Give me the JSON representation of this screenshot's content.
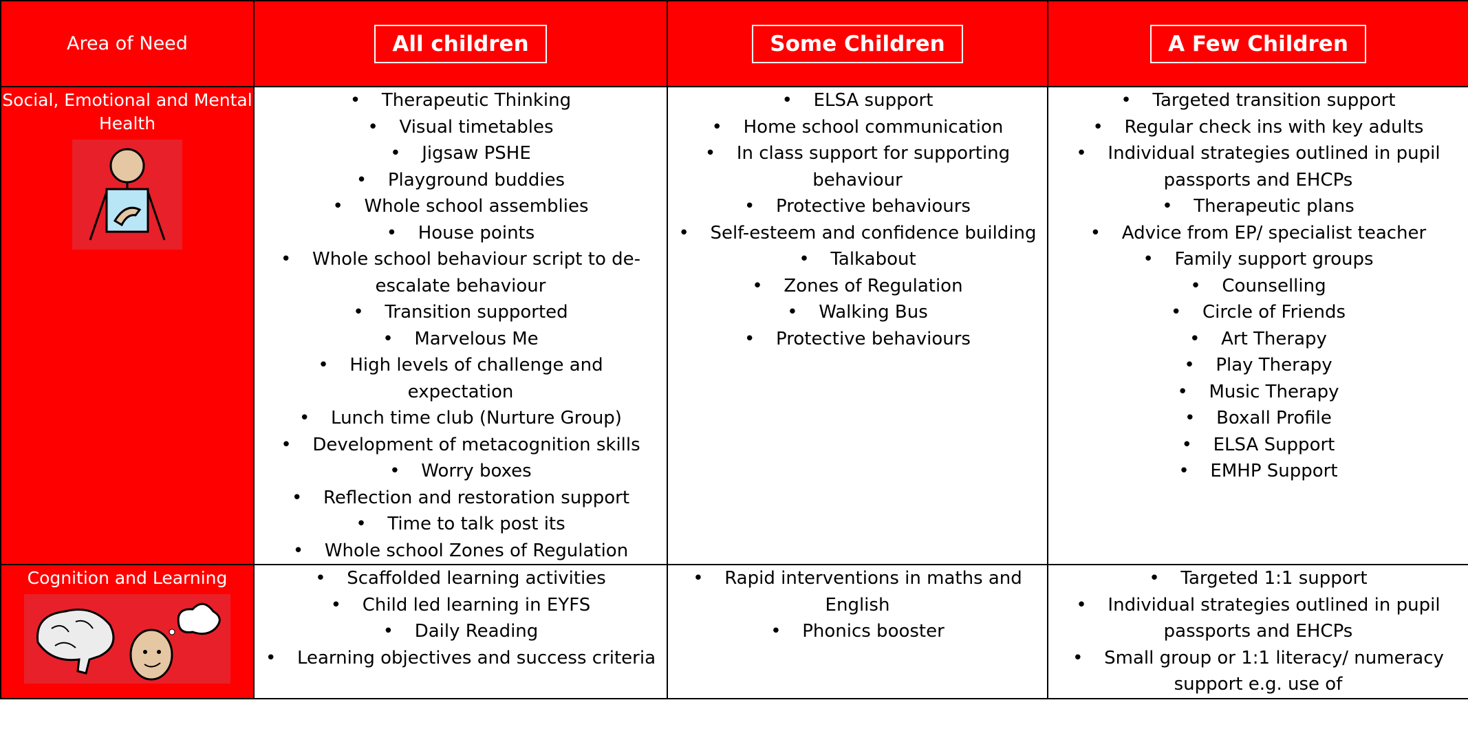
{
  "table": {
    "header": [
      "Area of Need",
      "All children",
      "Some Children",
      "A Few Children"
    ],
    "rows": [
      {
        "area": "Social, Emotional and Mental Health",
        "cells": [
          [
            "Therapeutic Thinking",
            "Visual timetables",
            "Jigsaw PSHE",
            "Playground buddies",
            "Whole school assemblies",
            "House points",
            "Whole school behaviour script to de-escalate behaviour",
            "Transition supported",
            "Marvelous Me",
            "High levels of challenge and expectation",
            "Lunch time club (Nurture Group)",
            "Development of metacognition skills",
            "Worry boxes",
            "Reflection and restoration support",
            "Time to talk post its",
            "Whole school Zones of Regulation"
          ],
          [
            "ELSA support",
            "Home school communication",
            "In class support for supporting behaviour",
            "Protective behaviours",
            "Self-esteem and confidence building",
            "Talkabout",
            "Zones of Regulation",
            "Walking Bus",
            "Protective behaviours"
          ],
          [
            "Targeted transition support",
            "Regular check ins with key adults",
            "Individual strategies outlined in pupil passports and EHCPs",
            "Therapeutic plans",
            "Advice from EP/ specialist teacher",
            "Family support groups",
            "Counselling",
            "Circle of Friends",
            "Art Therapy",
            "Play Therapy",
            "Music Therapy",
            "Boxall Profile",
            "ELSA Support",
            "EMHP Support"
          ]
        ]
      },
      {
        "area": "Cognition and Learning",
        "cells": [
          [
            "Scaffolded learning activities",
            "Child led learning in EYFS",
            "Daily Reading",
            "Learning objectives and success criteria"
          ],
          [
            "Rapid interventions in maths and English",
            "Phonics booster"
          ],
          [
            "Targeted 1:1 support",
            "Individual strategies outlined in pupil passports and EHCPs",
            "Small group or 1:1 literacy/ numeracy support  e.g. use of"
          ]
        ]
      }
    ]
  }
}
